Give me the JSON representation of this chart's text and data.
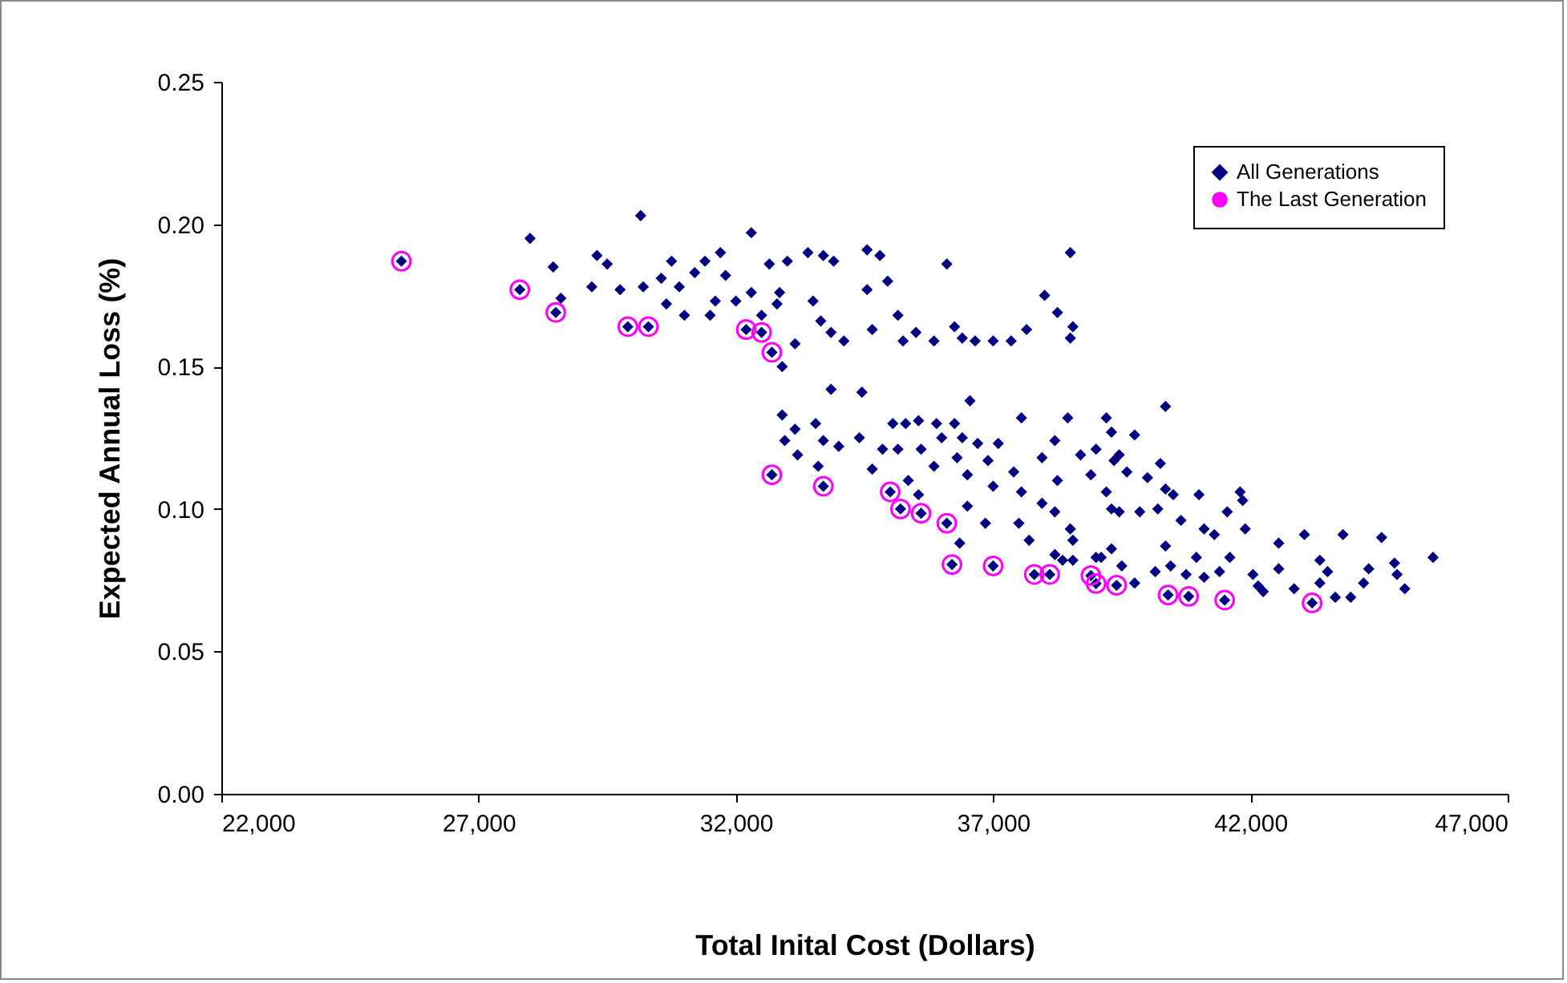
{
  "chart_data": {
    "type": "scatter",
    "xlabel": "Total Inital Cost (Dollars)",
    "ylabel": "Expected Annual Loss (%)",
    "xlim": [
      22000,
      47000
    ],
    "ylim": [
      0,
      0.25
    ],
    "xticks": [
      {
        "value": 22000,
        "label": "22,000"
      },
      {
        "value": 27000,
        "label": "27,000"
      },
      {
        "value": 32000,
        "label": "32,000"
      },
      {
        "value": 37000,
        "label": "37,000"
      },
      {
        "value": 42000,
        "label": "42,000"
      },
      {
        "value": 47000,
        "label": "47,000"
      }
    ],
    "yticks": [
      {
        "value": 0,
        "label": "0.00"
      },
      {
        "value": 0.05,
        "label": "0.05"
      },
      {
        "value": 0.1,
        "label": "0.10"
      },
      {
        "value": 0.15,
        "label": "0.15"
      },
      {
        "value": 0.2,
        "label": "0.20"
      },
      {
        "value": 0.25,
        "label": "0.25"
      }
    ],
    "grid": false,
    "legend": "top right",
    "series": [
      {
        "name": "All Generations",
        "color": "#000080",
        "marker": "diamond",
        "x": [
          25500,
          27800,
          28500,
          29900,
          30300,
          32200,
          32500,
          32700,
          32700,
          33700,
          35000,
          35200,
          35600,
          36100,
          36200,
          37000,
          37800,
          38100,
          38900,
          39000,
          39400,
          40400,
          40800,
          41500,
          43200,
          28000,
          28450,
          28600,
          29300,
          29500,
          29200,
          29750,
          30150,
          30200,
          30750,
          30550,
          30900,
          30650,
          31000,
          31200,
          31400,
          31700,
          31800,
          31500,
          31600,
          32000,
          32300,
          32300,
          32500,
          32650,
          33000,
          32850,
          32800,
          33150,
          32900,
          33400,
          33700,
          33900,
          33500,
          33650,
          33850,
          34100,
          34550,
          34550,
          34650,
          33850,
          34450,
          34800,
          34950,
          35150,
          35250,
          35500,
          35850,
          36100,
          36250,
          36400,
          36650,
          37000,
          37350,
          37650,
          38000,
          38250,
          38500,
          38550,
          38500,
          32900,
          33550,
          33150,
          32950,
          33200,
          33700,
          34000,
          34400,
          33600,
          34650,
          35050,
          34850,
          35300,
          35550,
          35900,
          36250,
          36550,
          37550,
          38450,
          39200,
          35150,
          35600,
          36000,
          36400,
          35850,
          36300,
          35350,
          35550,
          36500,
          36700,
          36900,
          37100,
          37400,
          37550,
          37000,
          36500,
          36850,
          36350,
          37500,
          37700,
          37950,
          38250,
          37950,
          38200,
          38500,
          38700,
          39000,
          38900,
          39200,
          39450,
          39100,
          38350,
          39350,
          39300,
          40350,
          39750,
          38200,
          39450,
          40250,
          39600,
          40000,
          40350,
          40500,
          41000,
          41800,
          41850,
          41550,
          39300,
          39850,
          40200,
          40650,
          41100,
          41300,
          41900,
          42550,
          43050,
          43800,
          44550,
          45550,
          44800,
          44850,
          45000,
          44300,
          44200,
          43350,
          43500,
          43350,
          43650,
          43950,
          42850,
          42550,
          42250,
          42050,
          41600,
          41400,
          40950,
          40750,
          40450,
          40150,
          39750,
          39500,
          38550,
          38550,
          38200,
          39000,
          39300,
          40350,
          41100,
          42150
        ],
        "values": [
          0.187,
          0.177,
          0.169,
          0.164,
          0.164,
          0.163,
          0.162,
          0.155,
          0.112,
          0.108,
          0.106,
          0.1,
          0.0985,
          0.095,
          0.0805,
          0.08,
          0.077,
          0.077,
          0.0766,
          0.0738,
          0.0732,
          0.0698,
          0.0693,
          0.068,
          0.067,
          0.195,
          0.185,
          0.174,
          0.189,
          0.186,
          0.178,
          0.177,
          0.203,
          0.178,
          0.187,
          0.181,
          0.178,
          0.172,
          0.168,
          0.183,
          0.187,
          0.19,
          0.182,
          0.168,
          0.173,
          0.173,
          0.176,
          0.197,
          0.168,
          0.186,
          0.187,
          0.176,
          0.172,
          0.158,
          0.15,
          0.19,
          0.189,
          0.187,
          0.173,
          0.166,
          0.162,
          0.159,
          0.191,
          0.177,
          0.163,
          0.142,
          0.141,
          0.189,
          0.18,
          0.168,
          0.159,
          0.162,
          0.159,
          0.186,
          0.164,
          0.16,
          0.159,
          0.159,
          0.159,
          0.163,
          0.175,
          0.169,
          0.19,
          0.164,
          0.16,
          0.133,
          0.13,
          0.128,
          0.124,
          0.119,
          0.124,
          0.122,
          0.125,
          0.115,
          0.114,
          0.13,
          0.121,
          0.13,
          0.131,
          0.13,
          0.13,
          0.138,
          0.132,
          0.132,
          0.132,
          0.121,
          0.121,
          0.125,
          0.125,
          0.115,
          0.118,
          0.11,
          0.105,
          0.112,
          0.123,
          0.117,
          0.123,
          0.113,
          0.106,
          0.108,
          0.101,
          0.095,
          0.088,
          0.095,
          0.089,
          0.118,
          0.11,
          0.102,
          0.099,
          0.093,
          0.119,
          0.121,
          0.112,
          0.106,
          0.099,
          0.083,
          0.082,
          0.117,
          0.127,
          0.136,
          0.126,
          0.124,
          0.119,
          0.116,
          0.113,
          0.111,
          0.107,
          0.105,
          0.105,
          0.106,
          0.103,
          0.099,
          0.1,
          0.099,
          0.1,
          0.096,
          0.093,
          0.091,
          0.093,
          0.088,
          0.091,
          0.091,
          0.09,
          0.083,
          0.081,
          0.077,
          0.072,
          0.079,
          0.074,
          0.082,
          0.078,
          0.074,
          0.069,
          0.069,
          0.072,
          0.079,
          0.071,
          0.077,
          0.083,
          0.078,
          0.083,
          0.077,
          0.08,
          0.078,
          0.074,
          0.08,
          0.082,
          0.089,
          0.084,
          0.083,
          0.086,
          0.087,
          0.076,
          0.073
        ]
      },
      {
        "name": "The Last Generation",
        "color": "#ff00ff",
        "marker": "circle",
        "x": [
          25500,
          27800,
          28500,
          29900,
          30300,
          32200,
          32500,
          32700,
          32700,
          33700,
          35000,
          35200,
          35600,
          36100,
          36200,
          37000,
          37800,
          38100,
          38900,
          39000,
          39400,
          40400,
          40800,
          41500,
          43200
        ],
        "values": [
          0.187,
          0.177,
          0.169,
          0.164,
          0.164,
          0.163,
          0.162,
          0.155,
          0.112,
          0.108,
          0.106,
          0.1,
          0.0985,
          0.095,
          0.0805,
          0.08,
          0.077,
          0.077,
          0.0766,
          0.0738,
          0.0732,
          0.0698,
          0.0693,
          0.068,
          0.067
        ]
      }
    ]
  }
}
